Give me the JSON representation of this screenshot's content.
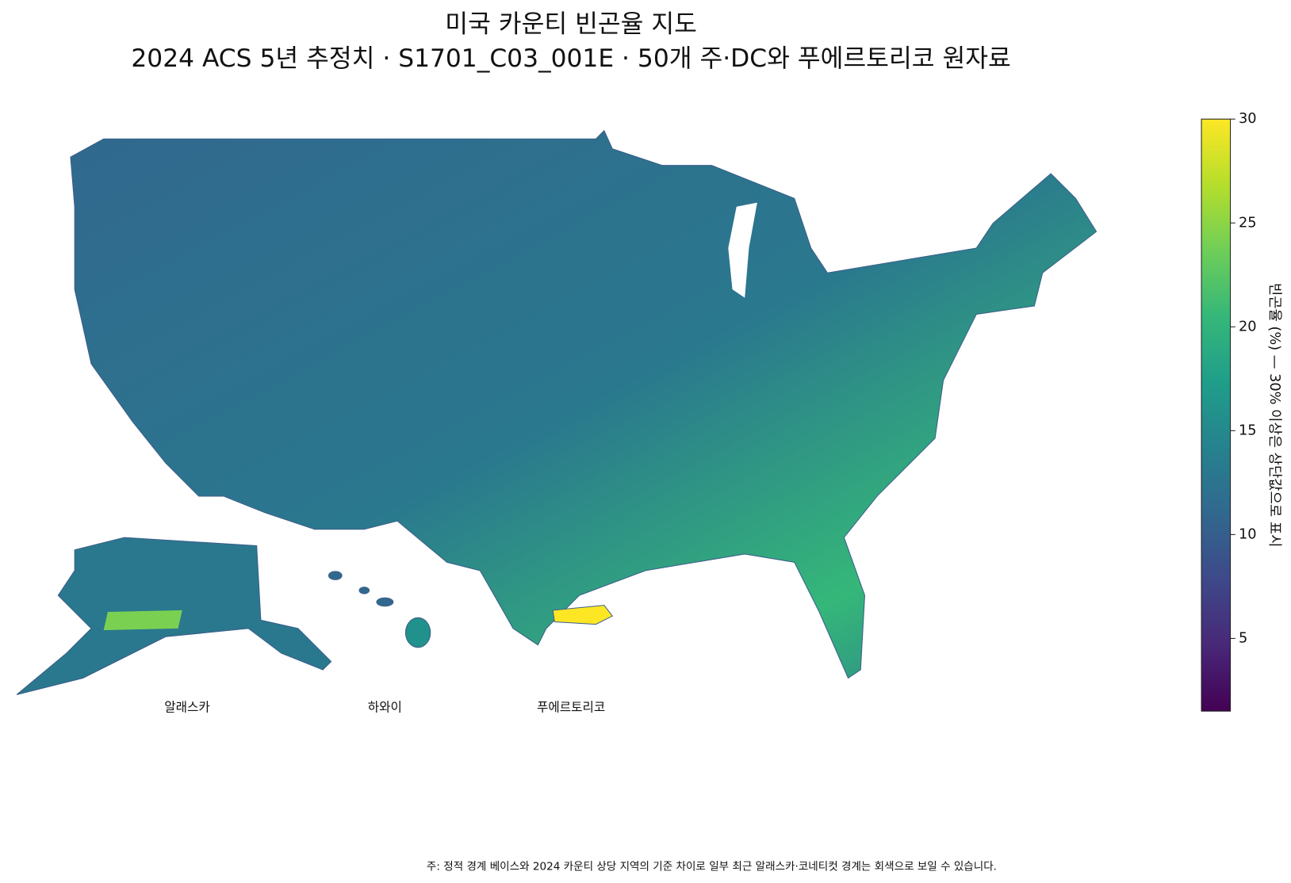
{
  "chart_data": {
    "type": "choropleth",
    "title": "미국 카운티 빈곤율 지도",
    "subtitle": "2024 ACS 5년 추정치 · S1701_C03_001E · 50개 주·DC와 푸에르토리코 원자료",
    "colorbar": {
      "label": "빈곤율 (%) — 30% 이상은 상단값으로 표시",
      "clim": [
        1.5,
        30
      ],
      "ticks": [
        5,
        10,
        15,
        20,
        25,
        30
      ],
      "colormap": "viridis"
    },
    "insets": [
      "알래스카",
      "하와이",
      "푸에르토리코"
    ],
    "note": "주: 정적 경계 베이스와 2024 카운티 상당 지역의 기준 차이로 일부 최근 알래스카·코네티컷 경계는 회색으로 보일 수 있습니다."
  }
}
